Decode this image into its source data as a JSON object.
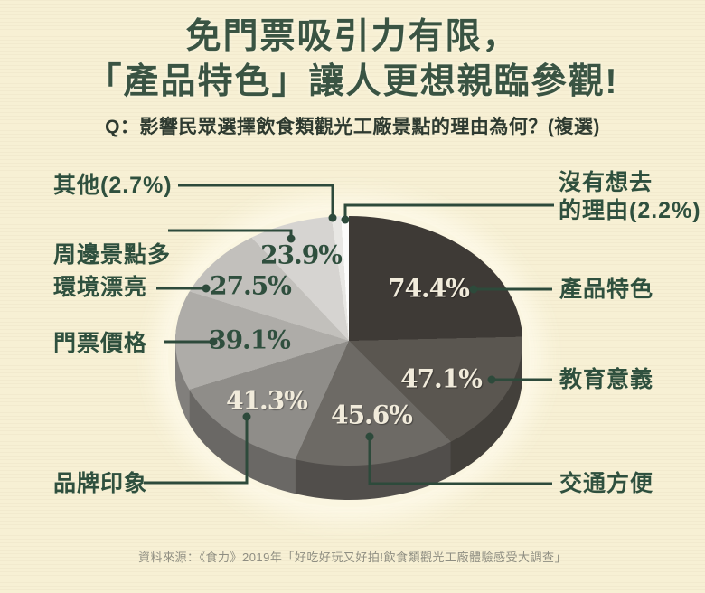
{
  "header": {
    "title_line1": "免門票吸引力有限，",
    "title_line2": "「產品特色」讓人更想親臨參觀!",
    "question": "Q：影響民眾選擇飲食類觀光工廠景點的理由為何？(複選)"
  },
  "chart_data": {
    "type": "pie",
    "style": "3d-exploded-none",
    "title": "影響民眾選擇飲食類觀光工廠景點的理由 (複選)",
    "unit": "%",
    "values_are_percent_multiselect": true,
    "start_angle_deg": 0,
    "direction": "clockwise",
    "series": [
      {
        "label": "產品特色",
        "display_label": "產品特色",
        "value": 74.4,
        "value_text": "74.4%",
        "color": "#3e3a36"
      },
      {
        "label": "教育意義",
        "display_label": "教育意義",
        "value": 47.1,
        "value_text": "47.1%",
        "color": "#5a5650"
      },
      {
        "label": "交通方便",
        "display_label": "交通方便",
        "value": 45.6,
        "value_text": "45.6%",
        "color": "#6d6a65"
      },
      {
        "label": "品牌印象",
        "display_label": "品牌印象",
        "value": 41.3,
        "value_text": "41.3%",
        "color": "#8f8d89"
      },
      {
        "label": "門票價格",
        "display_label": "門票價格",
        "value": 39.1,
        "value_text": "39.1%",
        "color": "#aeaca8"
      },
      {
        "label": "環境漂亮",
        "display_label": "環境漂亮",
        "value": 27.5,
        "value_text": "27.5%",
        "color": "#c2c0bc"
      },
      {
        "label": "周邊景點多",
        "display_label": "周邊景點多",
        "value": 23.9,
        "value_text": "23.9%",
        "color": "#d6d4d1"
      },
      {
        "label": "其他",
        "display_label": "其他(2.7%)",
        "value": 2.7,
        "value_text": "2.7%",
        "color": "#e8e7e4"
      },
      {
        "label": "沒有想去的理由",
        "display_label": "沒有想去的理由(2.2%)",
        "callout_line1": "沒有想去",
        "callout_line2": "的理由(2.2%)",
        "value": 2.2,
        "value_text": "2.2%",
        "color": "#fcfcfb"
      }
    ],
    "legend_position": "callouts-around-pie"
  },
  "footer": {
    "source": "資料來源：《食力》2019年「好吃好玩又好拍!飲食類觀光工廠體驗感受大調查」"
  },
  "colors": {
    "background": "#f7f0d4",
    "title_text": "#3a5443",
    "callout_text": "#2f503e",
    "leader_line": "#2d4a3b",
    "percent_on_dark": "#f1ebdb",
    "percent_on_light": "#2f4f3e",
    "source_text": "#8f8e82"
  }
}
